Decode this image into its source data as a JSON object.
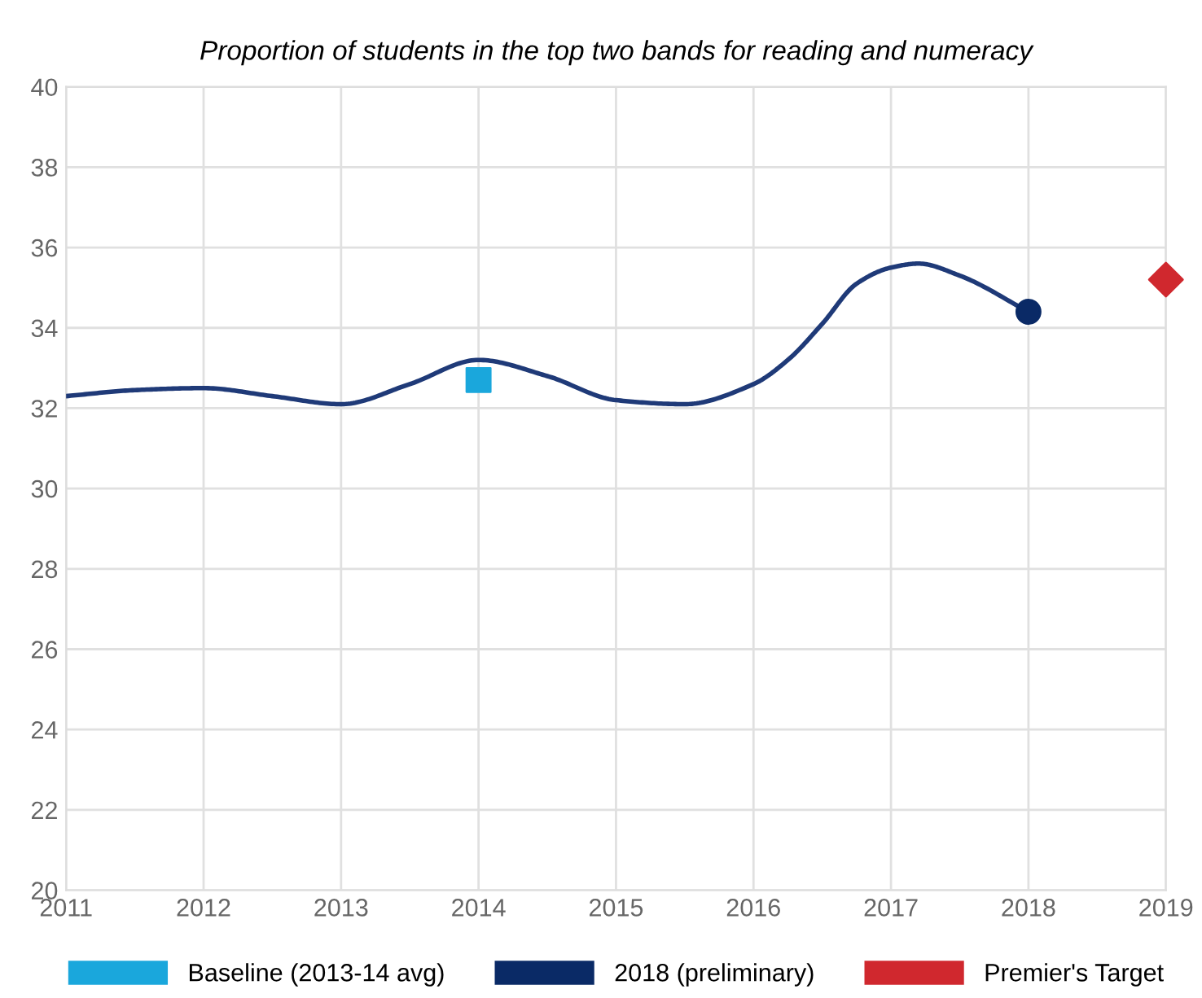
{
  "chart_data": {
    "type": "line",
    "title": "Proportion of students in the top two bands for reading and numeracy",
    "series": [
      {
        "color": "#1f3a78",
        "marker": "none",
        "x": [
          2011,
          2011.5,
          2012,
          2012.5,
          2013,
          2013.5,
          2014,
          2014.5,
          2015,
          2015.5,
          2016,
          2016.25,
          2016.5,
          2016.75,
          2017,
          2017.2,
          2017.5,
          2018
        ],
        "values": [
          32.3,
          32.45,
          32.5,
          32.3,
          32.1,
          32.6,
          33.2,
          32.8,
          32.2,
          32.1,
          32.6,
          33.2,
          34.1,
          35.1,
          35.5,
          35.6,
          35.3,
          34.4
        ]
      },
      {
        "type": "scatter",
        "name": "Baseline (2013-14 avg)",
        "color": "#1aa7dc",
        "marker": "square",
        "x": [
          2014
        ],
        "values": [
          32.7
        ]
      },
      {
        "type": "scatter",
        "name": "2018 (preliminary)",
        "color": "#0a2a66",
        "marker": "circle",
        "x": [
          2018
        ],
        "values": [
          34.4
        ]
      },
      {
        "type": "scatter",
        "name": "Premier's Target",
        "color": "#d0282e",
        "marker": "diamond",
        "x": [
          2019
        ],
        "values": [
          35.2
        ]
      }
    ],
    "xlim": [
      2011,
      2019
    ],
    "xticks": [
      2011,
      2012,
      2013,
      2014,
      2015,
      2016,
      2017,
      2018,
      2019
    ],
    "ylim": [
      20,
      40
    ],
    "yticks": [
      20,
      22,
      24,
      26,
      28,
      30,
      32,
      34,
      36,
      38,
      40
    ],
    "grid": true,
    "legend": "bottom"
  }
}
